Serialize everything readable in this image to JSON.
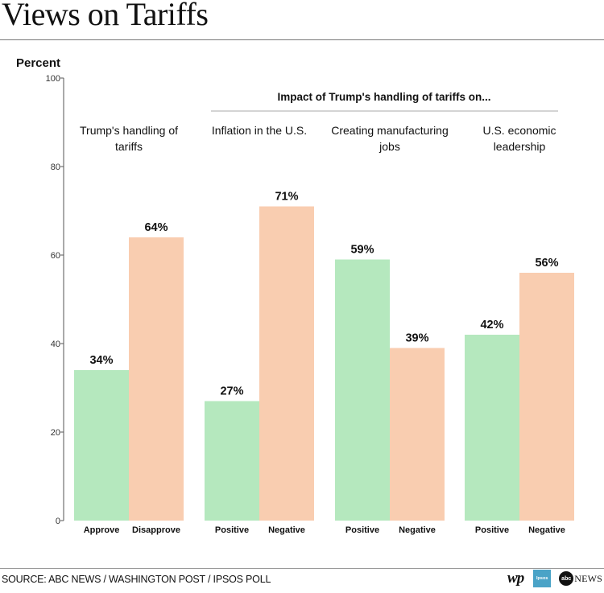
{
  "header": {
    "title": "Views on Tariffs"
  },
  "footer": {
    "source": "SOURCE: ABC NEWS / WASHINGTON POST / IPSOS POLL",
    "logos": {
      "wp": "wp",
      "ipsos": "Ipsos",
      "abc": "abc",
      "news": "NEWS"
    }
  },
  "colors": {
    "positive": "#b5e8be",
    "negative": "#f9cdb0",
    "axis": "#555555",
    "label": "#111111"
  },
  "chart_data": {
    "type": "bar",
    "ylabel": "Percent",
    "ylim": [
      0,
      100
    ],
    "yticks": [
      0,
      20,
      40,
      60,
      80,
      100
    ],
    "grid": false,
    "subheading": "Impact of Trump's handling of tariffs on...",
    "groups": [
      {
        "label": "Trump's handling of tariffs",
        "bars": [
          {
            "category": "Approve",
            "value": 34,
            "label": "34%",
            "kind": "positive"
          },
          {
            "category": "Disapprove",
            "value": 64,
            "label": "64%",
            "kind": "negative"
          }
        ]
      },
      {
        "label": "Inflation in the U.S.",
        "bars": [
          {
            "category": "Positive",
            "value": 27,
            "label": "27%",
            "kind": "positive"
          },
          {
            "category": "Negative",
            "value": 71,
            "label": "71%",
            "kind": "negative"
          }
        ]
      },
      {
        "label": "Creating manufacturing jobs",
        "bars": [
          {
            "category": "Positive",
            "value": 59,
            "label": "59%",
            "kind": "positive"
          },
          {
            "category": "Negative",
            "value": 39,
            "label": "39%",
            "kind": "negative"
          }
        ]
      },
      {
        "label": "U.S. economic leadership",
        "bars": [
          {
            "category": "Positive",
            "value": 42,
            "label": "42%",
            "kind": "positive"
          },
          {
            "category": "Negative",
            "value": 56,
            "label": "56%",
            "kind": "negative"
          }
        ]
      }
    ]
  }
}
